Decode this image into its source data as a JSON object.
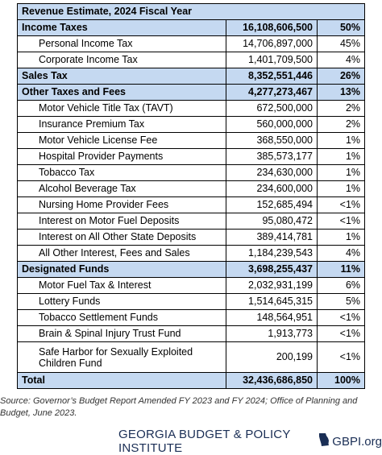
{
  "title": "Revenue Estimate, 2024 Fiscal Year",
  "sections": [
    {
      "name": "Income Taxes",
      "amount": "16,108,606,500",
      "pct": "50%",
      "items": [
        {
          "name": "Personal Income Tax",
          "amount": "14,706,897,000",
          "pct": "45%"
        },
        {
          "name": "Corporate Income Tax",
          "amount": "1,401,709,500",
          "pct": "4%"
        }
      ]
    },
    {
      "name": "Sales Tax",
      "amount": "8,352,551,446",
      "pct": "26%",
      "items": []
    },
    {
      "name": "Other Taxes and Fees",
      "amount": "4,277,273,467",
      "pct": "13%",
      "items": [
        {
          "name": "Motor Vehicle Title Tax (TAVT)",
          "amount": "672,500,000",
          "pct": "2%"
        },
        {
          "name": "Insurance Premium Tax",
          "amount": "560,000,000",
          "pct": "2%"
        },
        {
          "name": "Motor Vehicle License Fee",
          "amount": "368,550,000",
          "pct": "1%"
        },
        {
          "name": "Hospital Provider Payments",
          "amount": "385,573,177",
          "pct": "1%"
        },
        {
          "name": "Tobacco Tax",
          "amount": "234,630,000",
          "pct": "1%"
        },
        {
          "name": "Alcohol Beverage Tax",
          "amount": "234,600,000",
          "pct": "1%"
        },
        {
          "name": "Nursing Home Provider Fees",
          "amount": "152,685,494",
          "pct": "<1%"
        },
        {
          "name": "Interest on Motor Fuel Deposits",
          "amount": "95,080,472",
          "pct": "<1%"
        },
        {
          "name": "Interest on All Other State Deposits",
          "amount": "389,414,781",
          "pct": "1%"
        },
        {
          "name": "All Other Interest, Fees and Sales",
          "amount": "1,184,239,543",
          "pct": "4%"
        }
      ]
    },
    {
      "name": "Designated Funds",
      "amount": "3,698,255,437",
      "pct": "11%",
      "items": [
        {
          "name": "Motor Fuel Tax & Interest",
          "amount": "2,032,931,199",
          "pct": "6%"
        },
        {
          "name": "Lottery Funds",
          "amount": "1,514,645,315",
          "pct": "5%"
        },
        {
          "name": "Tobacco Settlement Funds",
          "amount": "148,564,951",
          "pct": "<1%"
        },
        {
          "name": "Brain & Spinal Injury Trust Fund",
          "amount": "1,913,773",
          "pct": "<1%"
        },
        {
          "name": "Safe Harbor for Sexually Exploited Children Fund",
          "amount": "200,199",
          "pct": "<1%"
        }
      ]
    }
  ],
  "total": {
    "name": "Total",
    "amount": "32,436,686,850",
    "pct": "100%"
  },
  "source": "Source: Governor’s Budget Report Amended FY 2023 and FY 2024; Office of Planning and Budget, June 2023.",
  "footer": {
    "org": "GEORGIA BUDGET & POLICY INSTITUTE",
    "site": "GBPI.org",
    "icon": "georgia-state-icon"
  },
  "colors": {
    "header_fill": "#c5d9f1",
    "brand": "#1a2e55"
  }
}
